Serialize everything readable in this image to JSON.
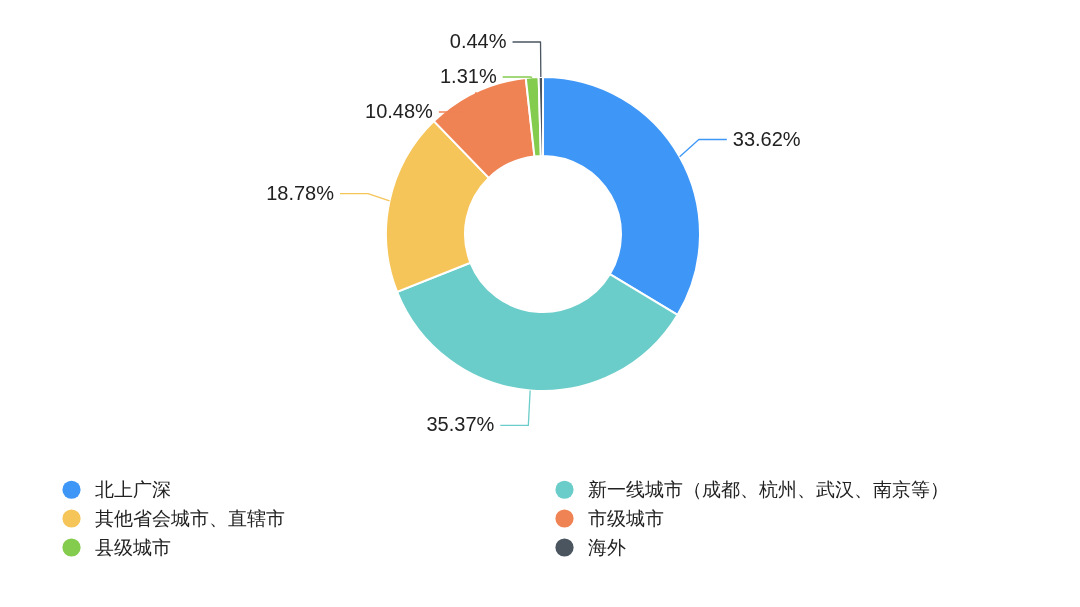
{
  "chart_data": {
    "type": "donut",
    "categories": [
      "北上广深",
      "新一线城市（成都、杭州、武汉、南京等）",
      "其他省会城市、直辖市",
      "市级城市",
      "县级城市",
      "海外"
    ],
    "values": [
      33.62,
      35.37,
      18.78,
      10.48,
      1.31,
      0.44
    ],
    "colors": [
      "#3e97f7",
      "#6bcdc9",
      "#f5c55a",
      "#ef8354",
      "#84cc4e",
      "#4a5560"
    ],
    "value_labels": [
      "33.62%",
      "35.37%",
      "18.78%",
      "10.48%",
      "1.31%",
      "0.44%"
    ],
    "legend": "bottom"
  }
}
